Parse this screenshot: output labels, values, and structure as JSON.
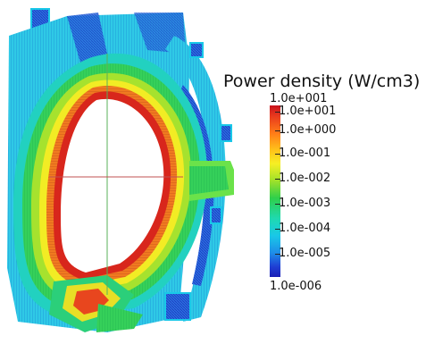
{
  "legend": {
    "title": "Power density (W/cm3)",
    "max_label": "1.0e+001",
    "min_label": "1.0e-006",
    "ticks": [
      "1.0e+001",
      "1.0e+000",
      "1.0e-001",
      "1.0e-002",
      "1.0e-003",
      "1.0e-004",
      "1.0e-005"
    ]
  },
  "colors": {
    "high": "#d01a1a",
    "orange": "#ff7f1a",
    "yellow": "#f4f022",
    "green": "#33cc44",
    "cyan": "#19cfe8",
    "blue": "#1f55d8",
    "low": "#1a1fb5"
  }
}
